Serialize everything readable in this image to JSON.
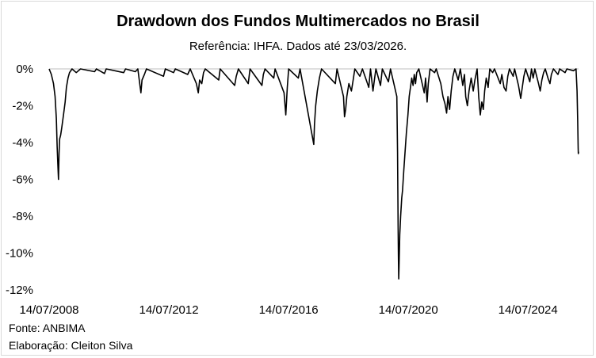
{
  "chart_data": {
    "type": "line",
    "title": "Drawdown dos Fundos Multimercados no Brasil",
    "subtitle": "Referência: IHFA. Dados até 23/03/2026.",
    "xlabel": "",
    "ylabel": "",
    "xlim": [
      "2008-07-14",
      "2026-03-23"
    ],
    "ylim": [
      -12,
      0
    ],
    "y_ticks": [
      0,
      -2,
      -4,
      -6,
      -8,
      -10,
      -12
    ],
    "y_tick_labels": [
      "0%",
      "-2%",
      "-4%",
      "-6%",
      "-8%",
      "-10%",
      "-12%"
    ],
    "x_ticks": [
      "2008-07-14",
      "2012-07-14",
      "2016-07-14",
      "2020-07-14",
      "2024-07-14"
    ],
    "x_tick_labels": [
      "14/07/2008",
      "14/07/2012",
      "14/07/2016",
      "14/07/2020",
      "14/07/2024"
    ],
    "grid": false,
    "legend": "none",
    "line_color": "#000000",
    "series": [
      {
        "values": [
          [
            "2008-07-14",
            0.0
          ],
          [
            "2008-08-10",
            -0.3
          ],
          [
            "2008-09-05",
            -0.8
          ],
          [
            "2008-09-25",
            -1.5
          ],
          [
            "2008-10-10",
            -2.7
          ],
          [
            "2008-10-20",
            -4.2
          ],
          [
            "2008-10-28",
            -5.2
          ],
          [
            "2008-11-05",
            -6.0
          ],
          [
            "2008-11-12",
            -4.6
          ],
          [
            "2008-11-20",
            -3.8
          ],
          [
            "2008-12-01",
            -3.6
          ],
          [
            "2008-12-15",
            -3.2
          ],
          [
            "2009-01-05",
            -2.5
          ],
          [
            "2009-01-25",
            -1.8
          ],
          [
            "2009-02-10",
            -1.0
          ],
          [
            "2009-03-01",
            -0.5
          ],
          [
            "2009-03-20",
            -0.2
          ],
          [
            "2009-04-20",
            0.0
          ],
          [
            "2009-06-10",
            -0.2
          ],
          [
            "2009-08-01",
            0.0
          ],
          [
            "2010-01-20",
            -0.15
          ],
          [
            "2010-02-10",
            0.0
          ],
          [
            "2010-05-20",
            -0.25
          ],
          [
            "2010-06-10",
            0.0
          ],
          [
            "2011-01-10",
            -0.2
          ],
          [
            "2011-02-01",
            0.0
          ],
          [
            "2011-06-01",
            -0.15
          ],
          [
            "2011-07-01",
            0.0
          ],
          [
            "2011-08-08",
            -1.3
          ],
          [
            "2011-08-22",
            -0.6
          ],
          [
            "2011-09-20",
            -0.3
          ],
          [
            "2011-10-15",
            0.0
          ],
          [
            "2012-05-10",
            -0.4
          ],
          [
            "2012-06-01",
            0.0
          ],
          [
            "2012-09-10",
            -0.2
          ],
          [
            "2012-10-01",
            0.0
          ],
          [
            "2013-03-01",
            -0.3
          ],
          [
            "2013-04-01",
            0.0
          ],
          [
            "2013-06-15",
            -0.8
          ],
          [
            "2013-07-08",
            -1.3
          ],
          [
            "2013-07-25",
            -0.6
          ],
          [
            "2013-08-20",
            -0.8
          ],
          [
            "2013-09-10",
            -0.2
          ],
          [
            "2013-10-01",
            0.0
          ],
          [
            "2014-03-15",
            -0.6
          ],
          [
            "2014-04-01",
            0.0
          ],
          [
            "2014-09-25",
            -0.9
          ],
          [
            "2014-10-15",
            -0.4
          ],
          [
            "2014-11-10",
            0.0
          ],
          [
            "2015-03-10",
            -0.8
          ],
          [
            "2015-04-01",
            0.0
          ],
          [
            "2015-08-24",
            -0.9
          ],
          [
            "2015-09-10",
            -0.3
          ],
          [
            "2015-10-01",
            0.0
          ],
          [
            "2016-01-15",
            -0.5
          ],
          [
            "2016-02-01",
            0.0
          ],
          [
            "2016-05-20",
            -1.3
          ],
          [
            "2016-06-10",
            -2.5
          ],
          [
            "2016-06-28",
            -1.0
          ],
          [
            "2016-07-15",
            0.0
          ],
          [
            "2016-11-10",
            -0.5
          ],
          [
            "2016-12-01",
            0.0
          ],
          [
            "2017-05-18",
            -4.1
          ],
          [
            "2017-05-26",
            -3.0
          ],
          [
            "2017-06-10",
            -2.0
          ],
          [
            "2017-06-30",
            -1.2
          ],
          [
            "2017-07-25",
            -0.5
          ],
          [
            "2017-08-20",
            0.0
          ],
          [
            "2018-02-05",
            -0.8
          ],
          [
            "2018-02-25",
            0.0
          ],
          [
            "2018-05-15",
            -1.5
          ],
          [
            "2018-05-28",
            -2.6
          ],
          [
            "2018-06-10",
            -2.2
          ],
          [
            "2018-06-25",
            -1.5
          ],
          [
            "2018-07-20",
            -0.8
          ],
          [
            "2018-08-20",
            -1.2
          ],
          [
            "2018-09-10",
            -0.6
          ],
          [
            "2018-10-01",
            0.0
          ],
          [
            "2018-12-01",
            -0.4
          ],
          [
            "2019-01-01",
            0.0
          ],
          [
            "2019-03-20",
            -1.0
          ],
          [
            "2019-04-10",
            0.0
          ],
          [
            "2019-05-10",
            -1.2
          ],
          [
            "2019-05-30",
            -0.5
          ],
          [
            "2019-06-15",
            0.0
          ],
          [
            "2019-08-10",
            -0.9
          ],
          [
            "2019-09-01",
            0.0
          ],
          [
            "2019-11-15",
            -0.7
          ],
          [
            "2019-12-10",
            0.0
          ],
          [
            "2020-02-25",
            -1.5
          ],
          [
            "2020-03-05",
            -4.5
          ],
          [
            "2020-03-12",
            -8.5
          ],
          [
            "2020-03-16",
            -10.2
          ],
          [
            "2020-03-19",
            -11.4
          ],
          [
            "2020-03-24",
            -10.5
          ],
          [
            "2020-04-01",
            -9.0
          ],
          [
            "2020-04-12",
            -8.0
          ],
          [
            "2020-04-25",
            -7.0
          ],
          [
            "2020-05-05",
            -6.6
          ],
          [
            "2020-05-20",
            -5.5
          ],
          [
            "2020-06-05",
            -4.5
          ],
          [
            "2020-06-20",
            -3.5
          ],
          [
            "2020-07-10",
            -2.5
          ],
          [
            "2020-07-25",
            -1.5
          ],
          [
            "2020-08-10",
            -1.0
          ],
          [
            "2020-08-25",
            -0.5
          ],
          [
            "2020-09-10",
            -0.9
          ],
          [
            "2020-09-25",
            -0.3
          ],
          [
            "2020-10-10",
            -0.8
          ],
          [
            "2020-10-25",
            -0.2
          ],
          [
            "2020-11-20",
            0.0
          ],
          [
            "2021-01-25",
            -1.3
          ],
          [
            "2021-02-10",
            -0.5
          ],
          [
            "2021-03-01",
            -1.8
          ],
          [
            "2021-03-15",
            -0.8
          ],
          [
            "2021-04-05",
            0.0
          ],
          [
            "2021-06-01",
            -0.2
          ],
          [
            "2021-06-20",
            0.0
          ],
          [
            "2021-08-15",
            -0.8
          ],
          [
            "2021-09-10",
            -1.5
          ],
          [
            "2021-10-05",
            -1.9
          ],
          [
            "2021-10-25",
            -2.4
          ],
          [
            "2021-11-10",
            -1.5
          ],
          [
            "2021-11-30",
            -2.2
          ],
          [
            "2021-12-20",
            -1.2
          ],
          [
            "2022-01-10",
            -0.4
          ],
          [
            "2022-02-01",
            0.0
          ],
          [
            "2022-03-15",
            -0.6
          ],
          [
            "2022-04-10",
            0.0
          ],
          [
            "2022-05-10",
            -0.9
          ],
          [
            "2022-05-30",
            -0.3
          ],
          [
            "2022-06-15",
            -1.5
          ],
          [
            "2022-07-05",
            -2.0
          ],
          [
            "2022-07-25",
            -1.2
          ],
          [
            "2022-08-20",
            -0.5
          ],
          [
            "2022-09-15",
            -1.2
          ],
          [
            "2022-10-05",
            -0.6
          ],
          [
            "2022-11-01",
            0.0
          ],
          [
            "2022-11-20",
            -1.5
          ],
          [
            "2022-12-10",
            -2.5
          ],
          [
            "2022-12-28",
            -1.8
          ],
          [
            "2023-01-15",
            -2.2
          ],
          [
            "2023-02-01",
            -1.2
          ],
          [
            "2023-02-20",
            -0.5
          ],
          [
            "2023-03-15",
            -1.0
          ],
          [
            "2023-04-05",
            0.0
          ],
          [
            "2023-05-10",
            -0.2
          ],
          [
            "2023-06-01",
            0.0
          ],
          [
            "2023-08-10",
            -0.8
          ],
          [
            "2023-08-30",
            -0.3
          ],
          [
            "2023-09-25",
            -1.0
          ],
          [
            "2023-10-20",
            -1.2
          ],
          [
            "2023-11-10",
            -0.4
          ],
          [
            "2023-12-01",
            0.0
          ],
          [
            "2024-01-15",
            -0.4
          ],
          [
            "2024-02-01",
            0.0
          ],
          [
            "2024-03-20",
            -0.9
          ],
          [
            "2024-04-16",
            -1.6
          ],
          [
            "2024-05-05",
            -1.0
          ],
          [
            "2024-05-25",
            -0.4
          ],
          [
            "2024-06-15",
            0.0
          ],
          [
            "2024-08-05",
            -0.7
          ],
          [
            "2024-08-25",
            0.0
          ],
          [
            "2024-09-15",
            -0.5
          ],
          [
            "2024-10-05",
            0.0
          ],
          [
            "2024-11-20",
            -0.8
          ],
          [
            "2024-12-10",
            -1.2
          ],
          [
            "2024-12-30",
            -0.6
          ],
          [
            "2025-01-20",
            -0.2
          ],
          [
            "2025-02-10",
            0.0
          ],
          [
            "2025-03-15",
            -0.5
          ],
          [
            "2025-04-08",
            -0.8
          ],
          [
            "2025-04-25",
            -0.3
          ],
          [
            "2025-05-20",
            0.0
          ],
          [
            "2025-07-15",
            -0.3
          ],
          [
            "2025-08-05",
            0.0
          ],
          [
            "2025-10-10",
            -0.2
          ],
          [
            "2025-11-01",
            0.0
          ],
          [
            "2026-01-20",
            -0.1
          ],
          [
            "2026-02-20",
            0.0
          ],
          [
            "2026-03-05",
            -1.2
          ],
          [
            "2026-03-12",
            -2.8
          ],
          [
            "2026-03-18",
            -4.3
          ],
          [
            "2026-03-20",
            -4.6
          ],
          [
            "2026-03-23",
            -4.5
          ]
        ]
      }
    ]
  },
  "footer": {
    "source": "Fonte: ANBIMA",
    "author": "Elaboração: Cleiton Silva"
  }
}
